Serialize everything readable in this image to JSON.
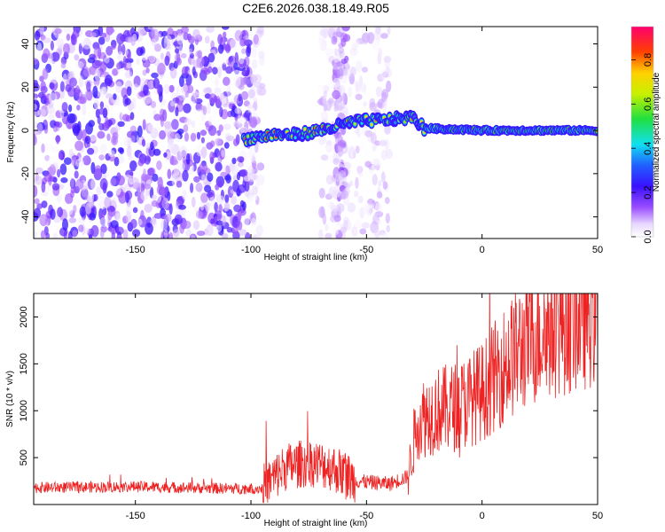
{
  "chart_data": [
    {
      "type": "heatmap",
      "title": "C2E6.2026.038.18.49.R05",
      "xlabel": "Height of straight line (km)",
      "ylabel": "Frequency (Hz)",
      "xlim": [
        -194,
        50
      ],
      "ylim": [
        -50,
        48
      ],
      "xticks": [
        -150,
        -100,
        -50,
        0,
        50
      ],
      "yticks": [
        -40,
        -20,
        0,
        20,
        40
      ],
      "colorbar": {
        "label": "Normalized spectral amplitude",
        "range": [
          0,
          0.95
        ],
        "ticks": [
          0.0,
          0.2,
          0.4,
          0.6,
          0.8
        ]
      },
      "signal_track": {
        "description": "narrow-band carrier centred near 0 Hz",
        "points": [
          {
            "x": -103,
            "y": -4
          },
          {
            "x": -90,
            "y": -2
          },
          {
            "x": -80,
            "y": -2
          },
          {
            "x": -70,
            "y": 0
          },
          {
            "x": -55,
            "y": 4
          },
          {
            "x": -40,
            "y": 5
          },
          {
            "x": -30,
            "y": 6
          },
          {
            "x": -25,
            "y": 1
          },
          {
            "x": 0,
            "y": 0
          },
          {
            "x": 50,
            "y": 0
          }
        ]
      },
      "noise_region": {
        "x_from": -194,
        "x_to": -100
      }
    },
    {
      "type": "line",
      "xlabel": "Height of straight line (km)",
      "ylabel": "SNR (10 * v/v)",
      "xlim": [
        -194,
        50
      ],
      "ylim": [
        0,
        2250
      ],
      "xticks": [
        -150,
        -100,
        -50,
        0,
        50
      ],
      "yticks": [
        500,
        1000,
        1500,
        2000
      ],
      "series": [
        {
          "name": "SNR",
          "color": "#ee2222",
          "trend": [
            {
              "x": -194,
              "y": 180
            },
            {
              "x": -150,
              "y": 190
            },
            {
              "x": -110,
              "y": 170
            },
            {
              "x": -95,
              "y": 170
            },
            {
              "x": -85,
              "y": 400
            },
            {
              "x": -75,
              "y": 450
            },
            {
              "x": -65,
              "y": 400
            },
            {
              "x": -55,
              "y": 250
            },
            {
              "x": -40,
              "y": 220
            },
            {
              "x": -32,
              "y": 300
            },
            {
              "x": -28,
              "y": 900
            },
            {
              "x": -20,
              "y": 1000
            },
            {
              "x": -10,
              "y": 1050
            },
            {
              "x": 0,
              "y": 1200
            },
            {
              "x": 10,
              "y": 1500
            },
            {
              "x": 20,
              "y": 1750
            },
            {
              "x": 30,
              "y": 1900
            },
            {
              "x": 40,
              "y": 2000
            },
            {
              "x": 50,
              "y": 2100
            }
          ]
        }
      ]
    }
  ]
}
